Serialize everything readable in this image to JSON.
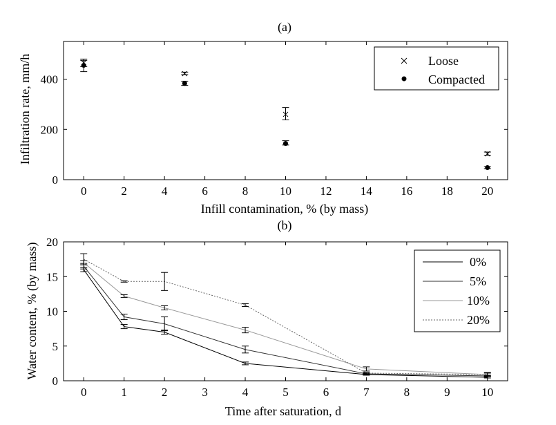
{
  "chart_data": [
    {
      "id": "a",
      "type": "scatter",
      "title": "(a)",
      "xlabel": "Infill contamination, % (by mass)",
      "ylabel": "Infiltration rate, mm/h",
      "xlim": [
        -1,
        21
      ],
      "ylim": [
        0,
        550
      ],
      "xticks": [
        0,
        2,
        4,
        6,
        8,
        10,
        12,
        14,
        16,
        18,
        20
      ],
      "yticks": [
        0,
        200,
        400
      ],
      "legend_position": "top-right",
      "series": [
        {
          "name": "Loose",
          "marker": "x",
          "points": [
            {
              "x": 0,
              "y": 465,
              "lo": 450,
              "hi": 480
            },
            {
              "x": 5,
              "y": 422,
              "lo": 418,
              "hi": 428
            },
            {
              "x": 10,
              "y": 260,
              "lo": 238,
              "hi": 287
            },
            {
              "x": 20,
              "y": 103,
              "lo": 97,
              "hi": 110
            }
          ]
        },
        {
          "name": "Compacted",
          "marker": "dot",
          "points": [
            {
              "x": 0,
              "y": 455,
              "lo": 430,
              "hi": 475
            },
            {
              "x": 5,
              "y": 383,
              "lo": 375,
              "hi": 392
            },
            {
              "x": 10,
              "y": 144,
              "lo": 138,
              "hi": 155
            },
            {
              "x": 20,
              "y": 48,
              "lo": 44,
              "hi": 52
            }
          ]
        }
      ]
    },
    {
      "id": "b",
      "type": "line",
      "title": "(b)",
      "xlabel": "Time after saturation, d",
      "ylabel": "Water content, % (by mass)",
      "xlim": [
        -0.5,
        10.5
      ],
      "ylim": [
        0,
        20
      ],
      "xticks": [
        0,
        1,
        2,
        3,
        4,
        5,
        6,
        7,
        8,
        9,
        10
      ],
      "yticks": [
        0,
        5,
        10,
        15,
        20
      ],
      "legend_position": "top-right",
      "x": [
        0,
        1,
        2,
        4,
        7,
        10
      ],
      "series": [
        {
          "name": "0%",
          "color": "#000000",
          "dash": "",
          "values": [
            16.0,
            7.8,
            7.0,
            2.5,
            0.9,
            0.5
          ],
          "err": [
            0.3,
            0.3,
            0.3,
            0.2,
            0.1,
            0.1
          ]
        },
        {
          "name": "5%",
          "color": "#333333",
          "dash": "",
          "values": [
            16.5,
            9.2,
            8.2,
            4.5,
            1.0,
            0.7
          ],
          "err": [
            0.4,
            0.4,
            1.0,
            0.5,
            0.1,
            0.1
          ]
        },
        {
          "name": "10%",
          "color": "#999999",
          "dash": "",
          "values": [
            17.0,
            12.2,
            10.5,
            7.3,
            1.7,
            0.9
          ],
          "err": [
            0.3,
            0.2,
            0.3,
            0.4,
            0.3,
            0.2
          ]
        },
        {
          "name": "20%",
          "color": "#666666",
          "dash": "2,2",
          "values": [
            17.5,
            14.3,
            14.3,
            10.9,
            1.1,
            0.9
          ],
          "err": [
            0.8,
            0.1,
            1.3,
            0.2,
            0.1,
            0.3
          ]
        }
      ]
    }
  ]
}
